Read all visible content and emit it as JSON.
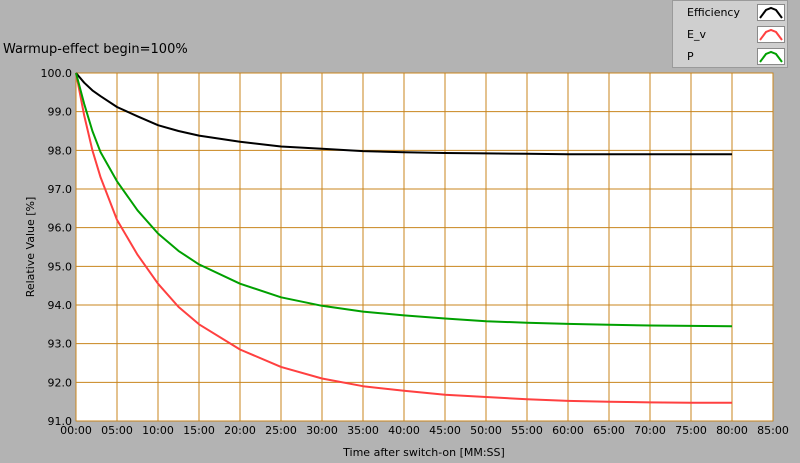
{
  "chart_data": {
    "type": "line",
    "title": "Warmup-effect begin=100%",
    "xlabel": "Time after switch-on [MM:SS]",
    "ylabel": "Relative Value [%]",
    "xlim": [
      0,
      85
    ],
    "ylim": [
      91.0,
      100.0
    ],
    "x_ticks": [
      0,
      5,
      10,
      15,
      20,
      25,
      30,
      35,
      40,
      45,
      50,
      55,
      60,
      65,
      70,
      75,
      80,
      85
    ],
    "x_tick_labels": [
      "00:00",
      "05:00",
      "10:00",
      "15:00",
      "20:00",
      "25:00",
      "30:00",
      "35:00",
      "40:00",
      "45:00",
      "50:00",
      "55:00",
      "60:00",
      "65:00",
      "70:00",
      "75:00",
      "80:00",
      "85:00"
    ],
    "y_ticks": [
      91,
      92,
      93,
      94,
      95,
      96,
      97,
      98,
      99,
      100
    ],
    "y_tick_labels": [
      "91.0",
      "92.0",
      "93.0",
      "94.0",
      "95.0",
      "96.0",
      "97.0",
      "98.0",
      "99.0",
      "100.0"
    ],
    "grid": true,
    "legend_position": "top-right",
    "series": [
      {
        "name": "Efficiency",
        "color": "#000000",
        "x": [
          0,
          1,
          2,
          3,
          5,
          7.5,
          10,
          12.5,
          15,
          20,
          25,
          30,
          35,
          40,
          45,
          50,
          55,
          60,
          65,
          70,
          75,
          80
        ],
        "y": [
          100.0,
          99.75,
          99.55,
          99.4,
          99.12,
          98.88,
          98.65,
          98.5,
          98.38,
          98.22,
          98.1,
          98.04,
          97.98,
          97.95,
          97.93,
          97.92,
          97.91,
          97.9,
          97.9,
          97.9,
          97.9,
          97.9
        ]
      },
      {
        "name": "E_v",
        "color": "#ff4040",
        "x": [
          0,
          1,
          2,
          3,
          5,
          7.5,
          10,
          12.5,
          15,
          20,
          25,
          30,
          35,
          40,
          45,
          50,
          55,
          60,
          65,
          70,
          75,
          80
        ],
        "y": [
          100.0,
          98.9,
          98.0,
          97.3,
          96.2,
          95.3,
          94.55,
          93.95,
          93.5,
          92.85,
          92.4,
          92.1,
          91.9,
          91.78,
          91.68,
          91.62,
          91.56,
          91.52,
          91.5,
          91.48,
          91.47,
          91.47
        ]
      },
      {
        "name": "P",
        "color": "#00a000",
        "x": [
          0,
          1,
          2,
          3,
          5,
          7.5,
          10,
          12.5,
          15,
          20,
          25,
          30,
          35,
          40,
          45,
          50,
          55,
          60,
          65,
          70,
          75,
          80
        ],
        "y": [
          100.0,
          99.2,
          98.5,
          97.95,
          97.2,
          96.45,
          95.85,
          95.4,
          95.05,
          94.55,
          94.2,
          93.98,
          93.83,
          93.73,
          93.65,
          93.58,
          93.54,
          93.51,
          93.49,
          93.47,
          93.46,
          93.45
        ]
      }
    ]
  }
}
